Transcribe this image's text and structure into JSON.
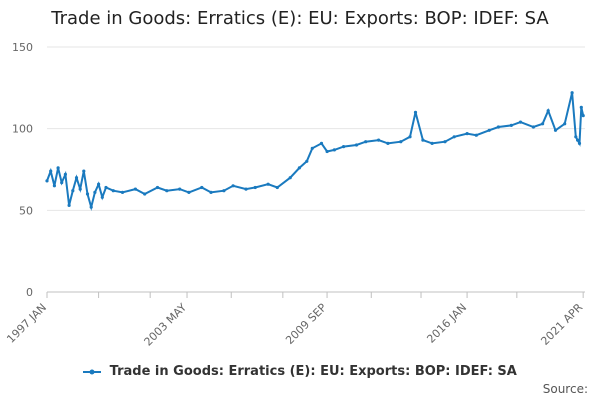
{
  "chart_data": {
    "type": "line",
    "title": "Trade in Goods: Erratics (E): EU: Exports: BOP: IDEF: SA",
    "xlabel": "",
    "ylabel": "",
    "ylim": [
      0,
      150
    ],
    "yticks": [
      0,
      50,
      100,
      150
    ],
    "x_range": [
      "1997-01",
      "2021-05"
    ],
    "xtick_labels": [
      {
        "label": "1997 JAN",
        "date": "1997-01"
      },
      {
        "label": "2003 MAY",
        "date": "2003-05"
      },
      {
        "label": "2009 SEP",
        "date": "2009-09"
      },
      {
        "label": "2016 JAN",
        "date": "2016-01"
      },
      {
        "label": "2021 APR",
        "date": "2021-04"
      }
    ],
    "grid": "horizontal",
    "legend_position": "bottom",
    "series": [
      {
        "name": "Trade in Goods: Erratics (E): EU: Exports: BOP: IDEF: SA",
        "color": "#1a7abf",
        "points": [
          [
            "1997-01",
            68
          ],
          [
            "1997-03",
            74
          ],
          [
            "1997-05",
            65
          ],
          [
            "1997-07",
            76
          ],
          [
            "1997-09",
            67
          ],
          [
            "1997-11",
            72
          ],
          [
            "1998-01",
            53
          ],
          [
            "1998-03",
            62
          ],
          [
            "1998-05",
            70
          ],
          [
            "1998-07",
            63
          ],
          [
            "1998-09",
            74
          ],
          [
            "1998-11",
            60
          ],
          [
            "1999-01",
            52
          ],
          [
            "1999-03",
            61
          ],
          [
            "1999-05",
            66
          ],
          [
            "1999-07",
            58
          ],
          [
            "1999-09",
            64
          ],
          [
            "2000-01",
            62
          ],
          [
            "2000-06",
            61
          ],
          [
            "2001-01",
            63
          ],
          [
            "2001-06",
            60
          ],
          [
            "2002-01",
            64
          ],
          [
            "2002-06",
            62
          ],
          [
            "2003-01",
            63
          ],
          [
            "2003-06",
            61
          ],
          [
            "2004-01",
            64
          ],
          [
            "2004-06",
            61
          ],
          [
            "2005-01",
            62
          ],
          [
            "2005-06",
            65
          ],
          [
            "2006-01",
            63
          ],
          [
            "2006-06",
            64
          ],
          [
            "2007-01",
            66
          ],
          [
            "2007-06",
            64
          ],
          [
            "2008-01",
            70
          ],
          [
            "2008-06",
            76
          ],
          [
            "2008-10",
            80
          ],
          [
            "2009-01",
            88
          ],
          [
            "2009-06",
            91
          ],
          [
            "2009-09",
            86
          ],
          [
            "2010-01",
            87
          ],
          [
            "2010-06",
            89
          ],
          [
            "2011-01",
            90
          ],
          [
            "2011-06",
            92
          ],
          [
            "2012-01",
            93
          ],
          [
            "2012-06",
            91
          ],
          [
            "2013-01",
            92
          ],
          [
            "2013-06",
            95
          ],
          [
            "2013-09",
            110
          ],
          [
            "2014-01",
            93
          ],
          [
            "2014-06",
            91
          ],
          [
            "2015-01",
            92
          ],
          [
            "2015-06",
            95
          ],
          [
            "2016-01",
            97
          ],
          [
            "2016-06",
            96
          ],
          [
            "2017-01",
            99
          ],
          [
            "2017-06",
            101
          ],
          [
            "2018-01",
            102
          ],
          [
            "2018-06",
            104
          ],
          [
            "2019-01",
            101
          ],
          [
            "2019-06",
            103
          ],
          [
            "2019-09",
            111
          ],
          [
            "2020-01",
            99
          ],
          [
            "2020-06",
            103
          ],
          [
            "2020-10",
            122
          ],
          [
            "2020-12",
            95
          ],
          [
            "2021-01",
            93
          ],
          [
            "2021-02",
            91
          ],
          [
            "2021-03",
            113
          ],
          [
            "2021-04",
            108
          ]
        ]
      }
    ]
  },
  "source_label": "Source:"
}
